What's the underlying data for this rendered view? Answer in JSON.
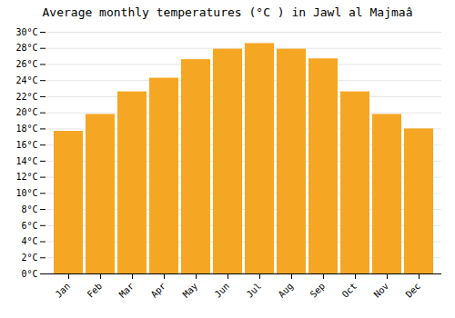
{
  "chart_data": {
    "type": "bar",
    "title": "Average monthly temperatures (°C ) in Jawl al Majmaâ",
    "categories": [
      "Jan",
      "Feb",
      "Mar",
      "Apr",
      "May",
      "Jun",
      "Jul",
      "Aug",
      "Sep",
      "Oct",
      "Nov",
      "Dec"
    ],
    "values": [
      17.7,
      19.8,
      22.6,
      24.3,
      26.6,
      27.9,
      28.6,
      27.9,
      26.7,
      22.6,
      19.8,
      18.0
    ],
    "color": "#F5A623",
    "ylim": [
      0,
      30
    ],
    "yticks": [
      {
        "value": 0,
        "label": "0°C"
      },
      {
        "value": 2,
        "label": "2°C"
      },
      {
        "value": 4,
        "label": "4°C"
      },
      {
        "value": 6,
        "label": "6°C"
      },
      {
        "value": 8,
        "label": "8°C"
      },
      {
        "value": 10,
        "label": "10°C"
      },
      {
        "value": 12,
        "label": "12°C"
      },
      {
        "value": 14,
        "label": "14°C"
      },
      {
        "value": 16,
        "label": "16°C"
      },
      {
        "value": 18,
        "label": "18°C"
      },
      {
        "value": 20,
        "label": "20°C"
      },
      {
        "value": 22,
        "label": "22°C"
      },
      {
        "value": 24,
        "label": "24°C"
      },
      {
        "value": 26,
        "label": "26°C"
      },
      {
        "value": 28,
        "label": "28°C"
      },
      {
        "value": 30,
        "label": "30°C"
      }
    ],
    "grid": true
  }
}
